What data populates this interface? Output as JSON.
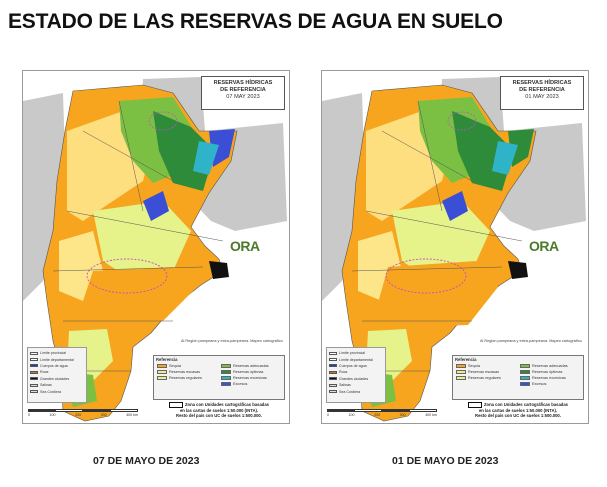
{
  "page_title": "ESTADO DE LAS RESERVAS DE AGUA EN SUELO",
  "maps": [
    {
      "ref_title_line1": "RESERVAS HÍDRICAS",
      "ref_title_line2": "DE REFERENCIA",
      "ref_date": "07 MAY 2023",
      "caption": "07 DE MAYO DE 2023"
    },
    {
      "ref_title_line1": "RESERVAS HÍDRICAS",
      "ref_title_line2": "DE REFERENCIA",
      "ref_date": "01 MAY 2023",
      "caption": "01 DE MAYO DE 2023"
    }
  ],
  "logo_text": "ORA",
  "small_note": "Al Región pampeana y extra-pampeana. Mapeo cartográfico",
  "left_legend": [
    {
      "label": "Límite provincial",
      "color": "#ffffff"
    },
    {
      "label": "Límite departamental",
      "color": "#ffffff"
    },
    {
      "label": "Cuerpos de agua",
      "color": "#1f3fbf"
    },
    {
      "label": "Roca",
      "color": "#c07a2a"
    },
    {
      "label": "Grandes ciudades",
      "color": "#111111"
    },
    {
      "label": "Salinas",
      "color": "#dddddd"
    },
    {
      "label": "Sea Cordiera",
      "color": "#f2d0f2"
    }
  ],
  "legend": {
    "title": "Referencia",
    "items": [
      {
        "label": "Sequía",
        "color": "#f7a51e"
      },
      {
        "label": "Reservas adecuadas",
        "color": "#7bc043"
      },
      {
        "label": "Reservas escasas",
        "color": "#fde68a"
      },
      {
        "label": "Reservas óptimas",
        "color": "#2e8b3a"
      },
      {
        "label": "Reservas regulares",
        "color": "#e6f28a"
      },
      {
        "label": "Reservas excesivas",
        "color": "#2fb3c9"
      },
      {
        "label": "",
        "color": ""
      },
      {
        "label": "Excesos",
        "color": "#3b4fd6"
      }
    ],
    "note_line1": "Zona con Unidades cartográficas basadas",
    "note_line2": "en las cartas de suelos 1:50.000 (INTA).",
    "note_line3": "Resto del país con UC de suelos 1:500.000."
  },
  "scale_ticks": [
    "0",
    "100",
    "200",
    "300",
    "400 km"
  ],
  "colors": {
    "drought": "#f7a51e",
    "scarce": "#fde68a",
    "regular": "#e6f28a",
    "adequate": "#7bc043",
    "optimal": "#2e8b3a",
    "excess_reserves": "#2fb3c9",
    "excess": "#3b4fd6",
    "city": "#111111",
    "neighbor_land": "#c9c9c9",
    "sea": "#ffffff"
  }
}
